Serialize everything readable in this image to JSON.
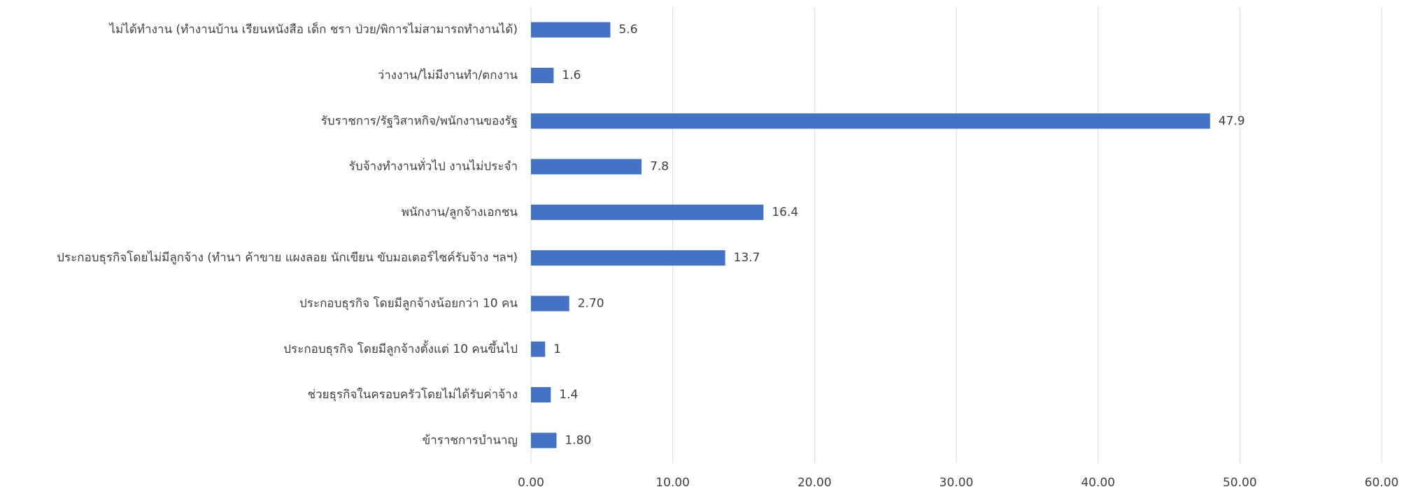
{
  "chart_data": {
    "type": "hbar",
    "categories": [
      "ไม่ได้ทำงาน (ทำงานบ้าน เรียนหนังสือ เด็ก ชรา ป่วย/พิการไม่สามารถทำงานได้)",
      "ว่างงาน/ไม่มีงานทำ/ตกงาน",
      "รับราชการ/รัฐวิสาหกิจ/พนักงานของรัฐ",
      "รับจ้างทำงานทั่วไป งานไม่ประจำ",
      "พนักงาน/ลูกจ้างเอกชน",
      "ประกอบธุรกิจโดยไม่มีลูกจ้าง (ทำนา ค้าขาย แผงลอย นักเขียน ขับมอเตอร์ไซค์รับจ้าง ฯลฯ)",
      "ประกอบธุรกิจ โดยมีลูกจ้างน้อยกว่า 10 คน",
      "ประกอบธุรกิจ โดยมีลูกจ้างตั้งแต่ 10 คนขึ้นไป",
      "ช่วยธุรกิจในครอบครัวโดยไม่ได้รับค่าจ้าง",
      "ข้าราชการบำนาญ"
    ],
    "values": [
      5.6,
      1.6,
      47.9,
      7.8,
      16.4,
      13.7,
      2.7,
      1,
      1.4,
      1.8
    ],
    "value_labels": [
      "5.6",
      "1.6",
      "47.9",
      "7.8",
      "16.4",
      "13.7",
      "2.70",
      "1",
      "1.4",
      "1.80"
    ],
    "color": "#4472c4",
    "xlim": [
      0,
      60
    ],
    "xticks": [
      {
        "value": 0,
        "label": "0.00"
      },
      {
        "value": 10,
        "label": "10.00"
      },
      {
        "value": 20,
        "label": "20.00"
      },
      {
        "value": 30,
        "label": "30.00"
      },
      {
        "value": 40,
        "label": "40.00"
      },
      {
        "value": 50,
        "label": "50.00"
      },
      {
        "value": 60,
        "label": "60.00"
      }
    ],
    "grid": true
  }
}
